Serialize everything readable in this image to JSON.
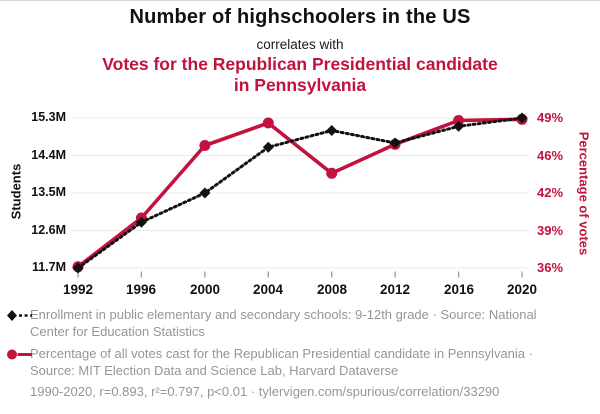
{
  "header": {
    "title": "Number of highschoolers in the US",
    "connector": "correlates with",
    "subtitle": "Votes for the Republican Presidential candidate in Pennsylvania"
  },
  "colors": {
    "series_black": "#111111",
    "series_red": "#c2123e",
    "grid": "#ebebeb",
    "tick_mark": "#999999",
    "legend_text": "#969696",
    "axis_text": "#111111"
  },
  "chart_data": {
    "type": "line",
    "x": [
      1992,
      1996,
      2000,
      2004,
      2008,
      2012,
      2016,
      2020
    ],
    "x_tick_labels": [
      "1992",
      "1996",
      "2000",
      "2004",
      "2008",
      "2012",
      "2016",
      "2020"
    ],
    "series": [
      {
        "name": "Enrollment in public elementary and secondary schools: 9-12th grade",
        "axis": "left",
        "style": "dashed",
        "marker": "diamond",
        "color": "#111111",
        "values": [
          11.7,
          12.8,
          13.5,
          14.6,
          15.0,
          14.7,
          15.1,
          15.3
        ],
        "unit": "million students"
      },
      {
        "name": "Percentage of all votes cast for the Republican Presidential candidate in Pennsylvania",
        "axis": "right",
        "style": "solid",
        "marker": "circle",
        "color": "#c2123e",
        "values": [
          36.1,
          40.0,
          46.8,
          48.6,
          44.1,
          46.9,
          48.8,
          48.9
        ],
        "unit": "%"
      }
    ],
    "left_axis": {
      "label": "Students",
      "tick_labels": [
        "11.7M",
        "12.6M",
        "13.5M",
        "14.4M",
        "15.3M"
      ],
      "tick_values": [
        11.7,
        12.6,
        13.5,
        14.4,
        15.3
      ]
    },
    "right_axis": {
      "label": "Percentage of votes",
      "tick_labels": [
        "36%",
        "39%",
        "42%",
        "46%",
        "49%"
      ],
      "tick_values": [
        36,
        39,
        42,
        46,
        49
      ]
    },
    "grid": "horizontal",
    "legend_position": "below"
  },
  "legend": {
    "items": [
      {
        "marker": "black-diamond-dashed-line",
        "text": "Enrollment in public elementary and secondary schools: 9-12th grade · Source: National Center for Education Statistics"
      },
      {
        "marker": "red-circle-solid-line",
        "text": "Percentage of all votes cast for the Republican Presidential candidate in Pennsylvania · Source: MIT Election Data and Science Lab, Harvard Dataverse"
      }
    ]
  },
  "footer": {
    "text": "1990-2020, r=0.893, r²=0.797, p<0.01 · tylervigen.com/spurious/correlation/33290"
  }
}
